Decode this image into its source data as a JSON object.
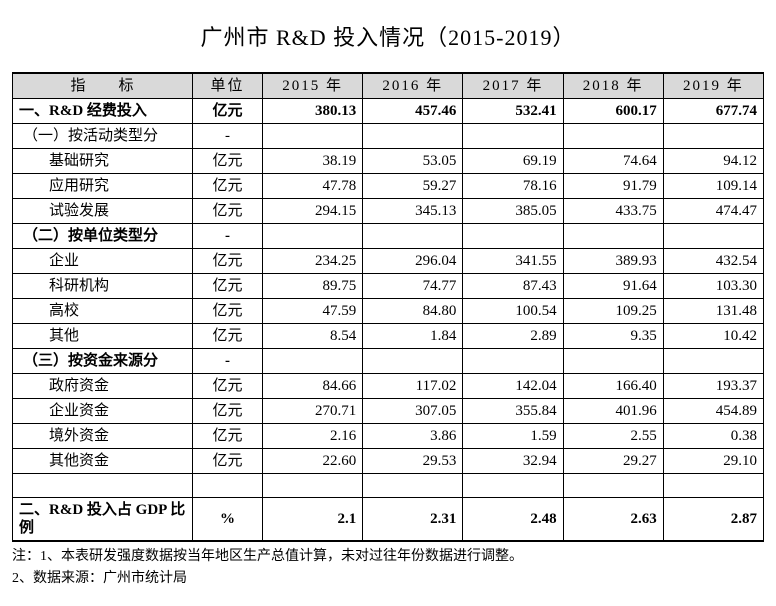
{
  "title": "广州市 R&D 投入情况（2015-2019）",
  "columns": {
    "indicator": "指　　标",
    "unit": "单位",
    "years": [
      "2015 年",
      "2016 年",
      "2017 年",
      "2018 年",
      "2019 年"
    ]
  },
  "rows": [
    {
      "label": "一、R&D 经费投入",
      "unit": "亿元",
      "values": [
        "380.13",
        "457.46",
        "532.41",
        "600.17",
        "677.74"
      ],
      "bold": true,
      "indent": 0
    },
    {
      "label": "（一）按活动类型分",
      "unit": "-",
      "values": [
        "",
        "",
        "",
        "",
        ""
      ],
      "bold": false,
      "indent": 1
    },
    {
      "label": "基础研究",
      "unit": "亿元",
      "values": [
        "38.19",
        "53.05",
        "69.19",
        "74.64",
        "94.12"
      ],
      "bold": false,
      "indent": 2
    },
    {
      "label": "应用研究",
      "unit": "亿元",
      "values": [
        "47.78",
        "59.27",
        "78.16",
        "91.79",
        "109.14"
      ],
      "bold": false,
      "indent": 2
    },
    {
      "label": "试验发展",
      "unit": "亿元",
      "values": [
        "294.15",
        "345.13",
        "385.05",
        "433.75",
        "474.47"
      ],
      "bold": false,
      "indent": 2
    },
    {
      "label": "（二）按单位类型分",
      "unit": "-",
      "values": [
        "",
        "",
        "",
        "",
        ""
      ],
      "bold": true,
      "indent": 1
    },
    {
      "label": "企业",
      "unit": "亿元",
      "values": [
        "234.25",
        "296.04",
        "341.55",
        "389.93",
        "432.54"
      ],
      "bold": false,
      "indent": 2
    },
    {
      "label": "科研机构",
      "unit": "亿元",
      "values": [
        "89.75",
        "74.77",
        "87.43",
        "91.64",
        "103.30"
      ],
      "bold": false,
      "indent": 2
    },
    {
      "label": "高校",
      "unit": "亿元",
      "values": [
        "47.59",
        "84.80",
        "100.54",
        "109.25",
        "131.48"
      ],
      "bold": false,
      "indent": 2
    },
    {
      "label": "其他",
      "unit": "亿元",
      "values": [
        "8.54",
        "1.84",
        "2.89",
        "9.35",
        "10.42"
      ],
      "bold": false,
      "indent": 2
    },
    {
      "label": "（三）按资金来源分",
      "unit": "-",
      "values": [
        "",
        "",
        "",
        "",
        ""
      ],
      "bold": true,
      "indent": 1
    },
    {
      "label": "政府资金",
      "unit": "亿元",
      "values": [
        "84.66",
        "117.02",
        "142.04",
        "166.40",
        "193.37"
      ],
      "bold": false,
      "indent": 2
    },
    {
      "label": "企业资金",
      "unit": "亿元",
      "values": [
        "270.71",
        "307.05",
        "355.84",
        "401.96",
        "454.89"
      ],
      "bold": false,
      "indent": 2
    },
    {
      "label": "境外资金",
      "unit": "亿元",
      "values": [
        "2.16",
        "3.86",
        "1.59",
        "2.55",
        "0.38"
      ],
      "bold": false,
      "indent": 2
    },
    {
      "label": "其他资金",
      "unit": "亿元",
      "values": [
        "22.60",
        "29.53",
        "32.94",
        "29.27",
        "29.10"
      ],
      "bold": false,
      "indent": 2
    },
    {
      "label": "",
      "unit": "",
      "values": [
        "",
        "",
        "",
        "",
        ""
      ],
      "bold": false,
      "indent": 0,
      "spacer": true
    },
    {
      "label": "二、R&D 投入占 GDP 比例",
      "unit": "%",
      "values": [
        "2.1",
        "2.31",
        "2.48",
        "2.63",
        "2.87"
      ],
      "bold": true,
      "indent": 0,
      "last": true
    }
  ],
  "notes": [
    "注：1、本表研发强度数据按当年地区生产总值计算，未对过往年份数据进行调整。",
    "2、数据来源：广州市统计局"
  ],
  "style": {
    "header_bg": "#d9d9d9",
    "border_color": "#000000",
    "font_family": "SimSun",
    "title_fontsize": 22,
    "body_fontsize": 15,
    "notes_fontsize": 14
  }
}
